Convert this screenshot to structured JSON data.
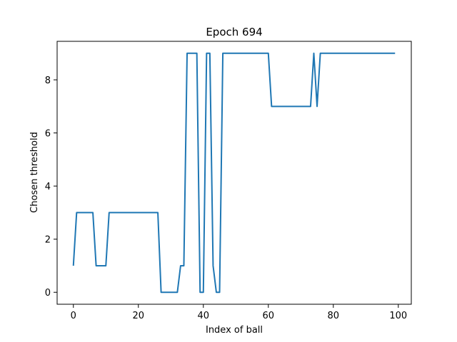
{
  "chart_data": {
    "type": "line",
    "title": "Epoch 694",
    "xlabel": "Index of ball",
    "ylabel": "Chosen threshold",
    "xlim": [
      -5,
      104
    ],
    "ylim": [
      -0.45,
      9.45
    ],
    "xticks": [
      0,
      20,
      40,
      60,
      80,
      100
    ],
    "yticks": [
      0,
      2,
      4,
      6,
      8
    ],
    "grid": false,
    "series": [
      {
        "color": "#1f77b4",
        "x": [
          0,
          1,
          2,
          3,
          4,
          5,
          6,
          7,
          8,
          9,
          10,
          11,
          12,
          13,
          14,
          15,
          16,
          17,
          18,
          19,
          20,
          21,
          22,
          23,
          24,
          25,
          26,
          27,
          28,
          29,
          30,
          31,
          32,
          33,
          34,
          35,
          36,
          37,
          38,
          39,
          40,
          41,
          42,
          43,
          44,
          45,
          46,
          47,
          48,
          49,
          50,
          51,
          52,
          53,
          54,
          55,
          56,
          57,
          58,
          59,
          60,
          61,
          62,
          63,
          64,
          65,
          66,
          67,
          68,
          69,
          70,
          71,
          72,
          73,
          74,
          75,
          76,
          77,
          78,
          79,
          80,
          81,
          82,
          83,
          84,
          85,
          86,
          87,
          88,
          89,
          90,
          91,
          92,
          93,
          94,
          95,
          96,
          97,
          98,
          99
        ],
        "y": [
          1,
          3,
          3,
          3,
          3,
          3,
          3,
          1,
          1,
          1,
          1,
          3,
          3,
          3,
          3,
          3,
          3,
          3,
          3,
          3,
          3,
          3,
          3,
          3,
          3,
          3,
          3,
          0,
          0,
          0,
          0,
          0,
          0,
          1,
          1,
          9,
          9,
          9,
          9,
          0,
          0,
          9,
          9,
          1,
          0,
          0,
          9,
          9,
          9,
          9,
          9,
          9,
          9,
          9,
          9,
          9,
          9,
          9,
          9,
          9,
          9,
          7,
          7,
          7,
          7,
          7,
          7,
          7,
          7,
          7,
          7,
          7,
          7,
          7,
          9,
          7,
          9,
          9,
          9,
          9,
          9,
          9,
          9,
          9,
          9,
          9,
          9,
          9,
          9,
          9,
          9,
          9,
          9,
          9,
          9,
          9,
          9,
          9,
          9,
          9
        ]
      }
    ]
  }
}
